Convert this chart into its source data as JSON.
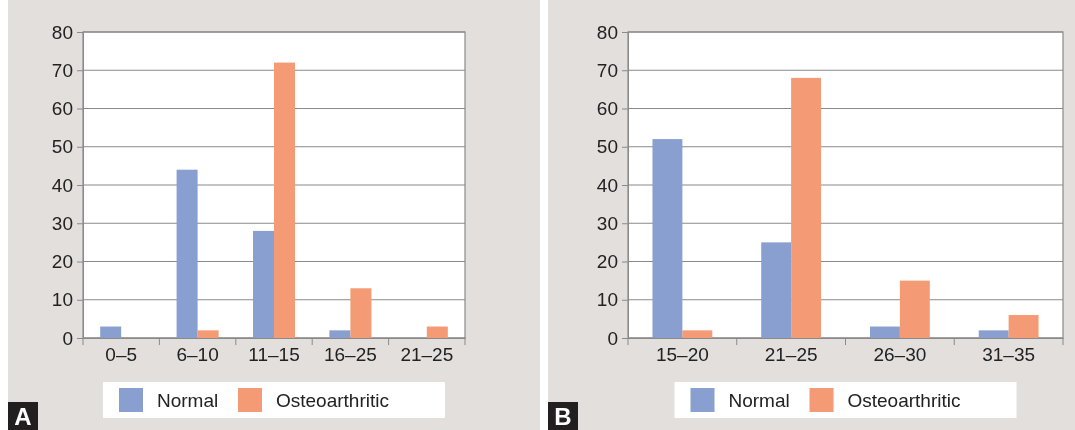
{
  "chart_data": [
    {
      "type": "bar",
      "categories": [
        "0–5",
        "6–10",
        "11–15",
        "16–25",
        "21–25"
      ],
      "series": [
        {
          "name": "Normal",
          "color": "#889fd0",
          "values": [
            3,
            44,
            28,
            2,
            null
          ]
        },
        {
          "name": "Osteoarthritic",
          "color": "#f49a74",
          "values": [
            null,
            2,
            72,
            13,
            3
          ]
        }
      ],
      "ylim": [
        0,
        80
      ],
      "yticks": [
        0,
        10,
        20,
        30,
        40,
        50,
        60,
        70,
        80
      ],
      "grid": "y",
      "legend": "bottom",
      "annotations": [
        "A"
      ]
    },
    {
      "type": "bar",
      "categories": [
        "15–20",
        "21–25",
        "26–30",
        "31–35"
      ],
      "series": [
        {
          "name": "Normal",
          "color": "#889fd0",
          "values": [
            52,
            25,
            3,
            2
          ]
        },
        {
          "name": "Osteoarthritic",
          "color": "#f49a74",
          "values": [
            2,
            68,
            15,
            6
          ]
        }
      ],
      "ylim": [
        0,
        80
      ],
      "yticks": [
        0,
        10,
        20,
        30,
        40,
        50,
        60,
        70,
        80
      ],
      "grid": "y",
      "legend": "bottom",
      "annotations": [
        "B"
      ]
    }
  ]
}
